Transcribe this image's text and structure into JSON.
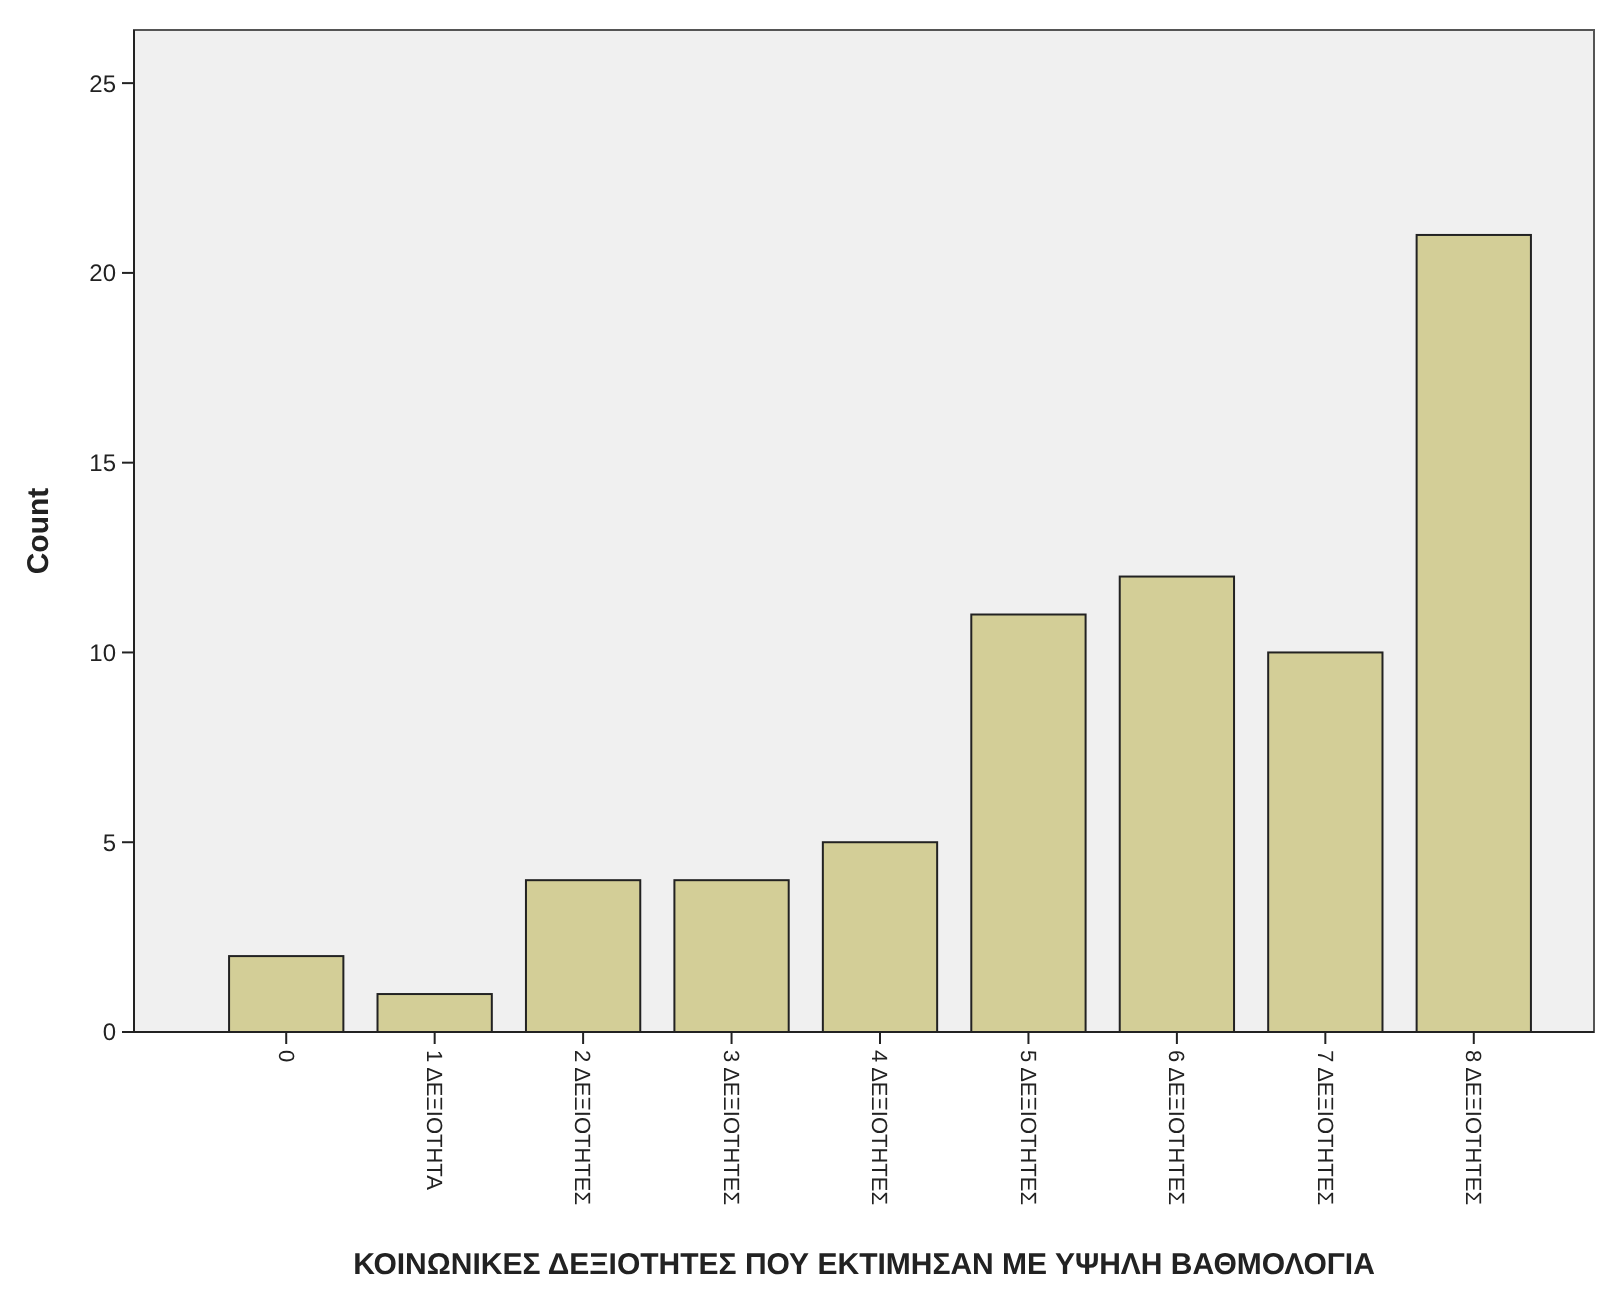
{
  "chart_data": {
    "type": "bar",
    "xlabel": "ΚΟΙΝΩΝΙΚΕΣ ΔΕΞΙΟΤΗΤΕΣ ΠΟΥ ΕΚΤΙΜΗΣΑΝ ΜΕ ΥΨΗΛΗ ΒΑΘΜΟΛΟΓΙΑ",
    "ylabel": "Count",
    "categories": [
      "0",
      "1 ΔΕΞΙΟΤΗΤΑ",
      "2 ΔΕΞΙΟΤΗΤΕΣ",
      "3 ΔΕΞΙΟΤΗΤΕΣ",
      "4 ΔΕΞΙΟΤΗΤΕΣ",
      "5 ΔΕΞΙΟΤΗΤΕΣ",
      "6 ΔΕΞΙΟΤΗΤΕΣ",
      "7 ΔΕΞΙΟΤΗΤΕΣ",
      "8 ΔΕΞΙΟΤΗΤΕΣ"
    ],
    "values": [
      2,
      1,
      4,
      4,
      5,
      11,
      12,
      10,
      21
    ],
    "color": "#d3ce97",
    "ylim": [
      0,
      26.4
    ],
    "yticks": [
      0,
      5,
      10,
      15,
      20,
      25
    ]
  }
}
